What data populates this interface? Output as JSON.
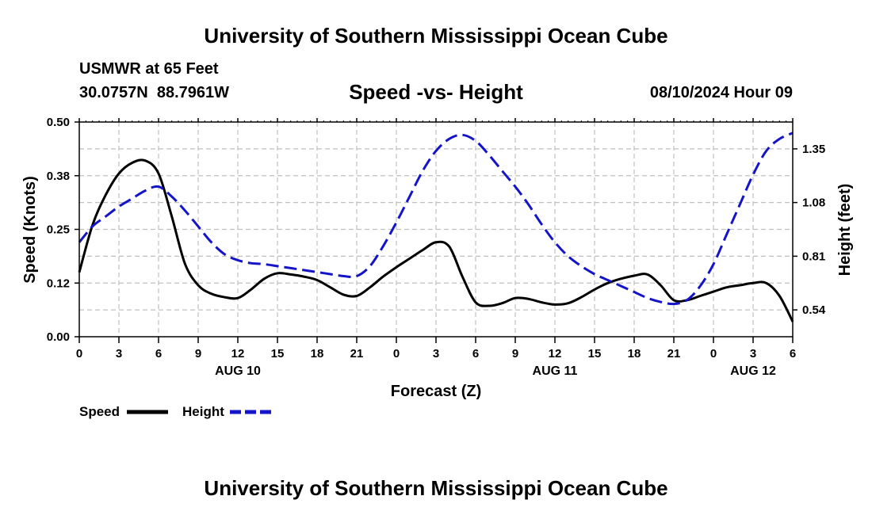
{
  "header": {
    "title_top": "University of Southern Mississippi Ocean Cube",
    "station": "USMWR at 65 Feet",
    "coords": "30.0757N  88.7961W",
    "date": "08/10/2024 Hour 09",
    "title_bottom": "University of Southern Mississippi Ocean Cube"
  },
  "legend": {
    "speed_label": "Speed",
    "height_label": "Height"
  },
  "chart_data": {
    "type": "line",
    "title": "Speed -vs- Height",
    "xlabel": "Forecast (Z)",
    "ylabel_left": "Speed (Knots)",
    "ylabel_right": "Height (feet)",
    "xlim": [
      0,
      54
    ],
    "ylim_left": [
      0,
      0.5
    ],
    "ylim_right": [
      0.405,
      1.485
    ],
    "x_ticks": [
      0,
      3,
      6,
      9,
      12,
      15,
      18,
      21,
      24,
      27,
      30,
      33,
      36,
      39,
      42,
      45,
      48,
      51,
      54
    ],
    "x_tick_labels": [
      "0",
      "3",
      "6",
      "9",
      "12",
      "15",
      "18",
      "21",
      "0",
      "3",
      "6",
      "9",
      "12",
      "15",
      "18",
      "21",
      "0",
      "3",
      "6"
    ],
    "day_labels": [
      {
        "x": 12,
        "label": "AUG 10"
      },
      {
        "x": 36,
        "label": "AUG 11"
      },
      {
        "x": 51,
        "label": "AUG 12"
      }
    ],
    "y_left_ticks": [
      0.0,
      0.125,
      0.25,
      0.375,
      0.5
    ],
    "y_left_tick_labels": [
      "0.00",
      "0.12",
      "0.25",
      "0.38",
      "0.50"
    ],
    "y_right_ticks": [
      0.54,
      0.81,
      1.08,
      1.35
    ],
    "y_right_tick_labels": [
      "0.54",
      "0.81",
      "1.08",
      "1.35"
    ],
    "grid": true,
    "series": [
      {
        "name": "Speed",
        "axis": "left",
        "color": "#000000",
        "style": "solid",
        "x": [
          0,
          1,
          2,
          3,
          4,
          5,
          6,
          7,
          8,
          9,
          10,
          11,
          12,
          13,
          14,
          15,
          16,
          17,
          18,
          19,
          20,
          21,
          22,
          23,
          24,
          25,
          26,
          27,
          28,
          29,
          30,
          31,
          32,
          33,
          34,
          35,
          36,
          37,
          38,
          39,
          40,
          41,
          42,
          43,
          44,
          45,
          46,
          47,
          48,
          49,
          50,
          51,
          52,
          53,
          54
        ],
        "values": [
          0.15,
          0.26,
          0.33,
          0.38,
          0.405,
          0.41,
          0.38,
          0.28,
          0.17,
          0.12,
          0.1,
          0.092,
          0.09,
          0.11,
          0.135,
          0.148,
          0.145,
          0.14,
          0.132,
          0.115,
          0.098,
          0.095,
          0.115,
          0.14,
          0.162,
          0.182,
          0.202,
          0.22,
          0.21,
          0.14,
          0.08,
          0.072,
          0.078,
          0.09,
          0.088,
          0.08,
          0.075,
          0.078,
          0.092,
          0.11,
          0.125,
          0.135,
          0.142,
          0.145,
          0.12,
          0.085,
          0.085,
          0.095,
          0.105,
          0.115,
          0.12,
          0.125,
          0.125,
          0.095,
          0.035
        ]
      },
      {
        "name": "Height",
        "axis": "right",
        "color": "#1414c8",
        "style": "dashed",
        "x": [
          0,
          1,
          2,
          3,
          4,
          5,
          6,
          7,
          8,
          9,
          10,
          11,
          12,
          13,
          14,
          15,
          16,
          17,
          18,
          19,
          20,
          21,
          22,
          23,
          24,
          25,
          26,
          27,
          28,
          29,
          30,
          31,
          32,
          33,
          34,
          35,
          36,
          37,
          38,
          39,
          40,
          41,
          42,
          43,
          44,
          45,
          46,
          47,
          48,
          49,
          50,
          51,
          52,
          53,
          54
        ],
        "values": [
          0.88,
          0.96,
          1.01,
          1.06,
          1.1,
          1.14,
          1.16,
          1.11,
          1.04,
          0.96,
          0.88,
          0.82,
          0.79,
          0.775,
          0.77,
          0.76,
          0.75,
          0.74,
          0.73,
          0.72,
          0.71,
          0.71,
          0.76,
          0.86,
          0.98,
          1.11,
          1.24,
          1.34,
          1.4,
          1.42,
          1.39,
          1.32,
          1.24,
          1.16,
          1.07,
          0.97,
          0.88,
          0.81,
          0.76,
          0.72,
          0.69,
          0.66,
          0.63,
          0.6,
          0.58,
          0.57,
          0.59,
          0.66,
          0.77,
          0.92,
          1.07,
          1.22,
          1.34,
          1.4,
          1.43
        ]
      }
    ]
  }
}
